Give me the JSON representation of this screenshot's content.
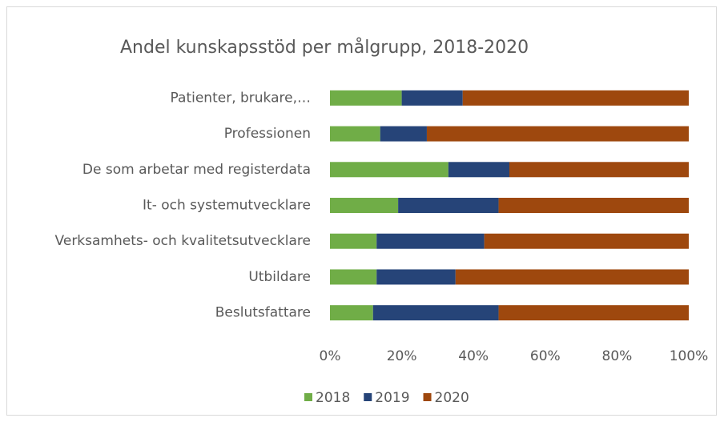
{
  "chart_data": {
    "type": "stacked_bar_horizontal",
    "title": "Andel kunskapsstöd per målgrupp, 2018-2020",
    "categories": [
      "Patienter, brukare,…",
      "Professionen",
      "De som arbetar med registerdata",
      "It- och systemutvecklare",
      "Verksamhets- och kvalitetsutvecklare",
      "Utbildare",
      "Beslutsfattare"
    ],
    "series": [
      {
        "name": "2018",
        "color": "#70ad47",
        "values": [
          20,
          14,
          33,
          19,
          13,
          13,
          12
        ]
      },
      {
        "name": "2019",
        "color": "#264478",
        "values": [
          17,
          13,
          17,
          28,
          30,
          22,
          35
        ]
      },
      {
        "name": "2020",
        "color": "#9e480e",
        "values": [
          63,
          73,
          50,
          53,
          57,
          65,
          53
        ]
      }
    ],
    "xlim": [
      0,
      100
    ],
    "xticks": [
      {
        "value": 0,
        "label": "0%"
      },
      {
        "value": 20,
        "label": "20%"
      },
      {
        "value": 40,
        "label": "40%"
      },
      {
        "value": 60,
        "label": "60%"
      },
      {
        "value": 80,
        "label": "80%"
      },
      {
        "value": 100,
        "label": "100%"
      }
    ],
    "legend": "bottom"
  }
}
